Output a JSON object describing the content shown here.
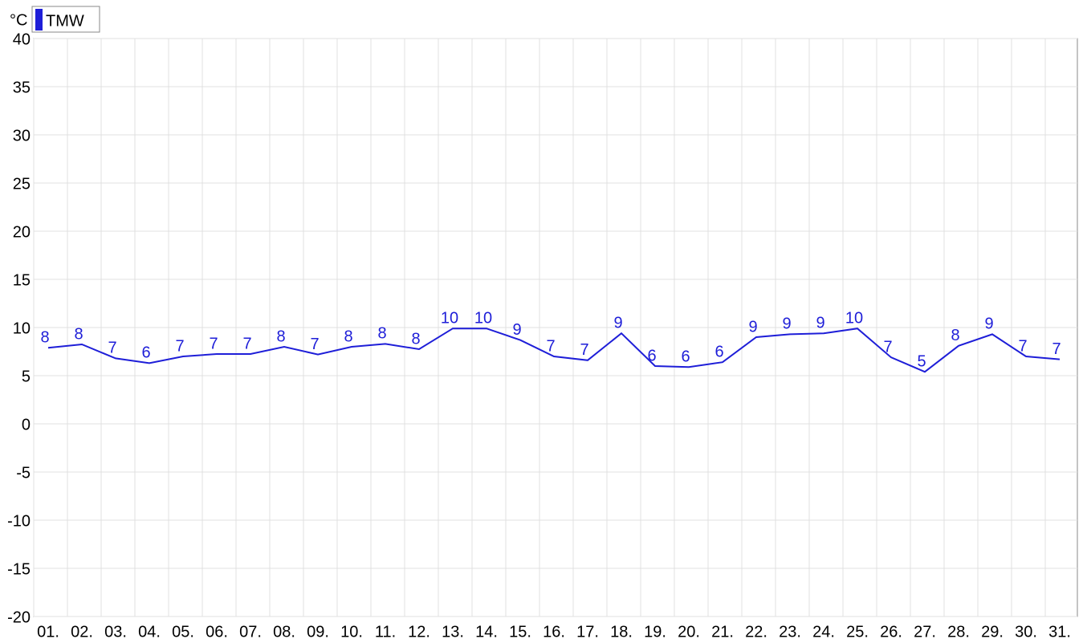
{
  "chart_data": {
    "type": "line",
    "y_label": "°C",
    "categories": [
      "01.",
      "02.",
      "03.",
      "04.",
      "05.",
      "06.",
      "07.",
      "08.",
      "09.",
      "10.",
      "11.",
      "12.",
      "13.",
      "14.",
      "15.",
      "16.",
      "17.",
      "18.",
      "19.",
      "20.",
      "21.",
      "22.",
      "23.",
      "24.",
      "25.",
      "26.",
      "27.",
      "28.",
      "29.",
      "30.",
      "31."
    ],
    "series": [
      {
        "name": "TMW",
        "color": "#1e1ed8",
        "values": [
          7.9,
          8.25,
          6.8,
          6.3,
          7.0,
          7.25,
          7.25,
          8.0,
          7.2,
          8.0,
          8.3,
          7.75,
          9.9,
          9.9,
          8.7,
          7.0,
          6.6,
          9.4,
          6.0,
          5.9,
          6.4,
          9.0,
          9.3,
          9.4,
          9.9,
          6.9,
          5.4,
          8.1,
          9.3,
          7.0,
          6.7
        ],
        "value_labels": [
          "8",
          "8",
          "7",
          "6",
          "7",
          "7",
          "7",
          "8",
          "7",
          "8",
          "8",
          "8",
          "10",
          "10",
          "9",
          "7",
          "7",
          "9",
          "6",
          "6",
          "6",
          "9",
          "9",
          "9",
          "10",
          "7",
          "5",
          "8",
          "9",
          "7",
          "7"
        ]
      }
    ],
    "ylim": [
      -20,
      40
    ],
    "yticks": [
      -20,
      -15,
      -10,
      -5,
      0,
      5,
      10,
      15,
      20,
      25,
      30,
      35,
      40
    ],
    "grid": true
  }
}
